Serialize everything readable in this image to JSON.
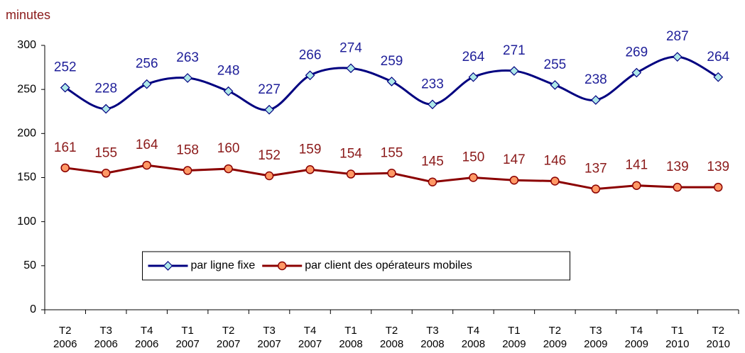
{
  "chart_data": {
    "type": "line",
    "y_label": "minutes",
    "categories": [
      [
        "T2",
        "2006"
      ],
      [
        "T3",
        "2006"
      ],
      [
        "T4",
        "2006"
      ],
      [
        "T1",
        "2007"
      ],
      [
        "T2",
        "2007"
      ],
      [
        "T3",
        "2007"
      ],
      [
        "T4",
        "2007"
      ],
      [
        "T1",
        "2008"
      ],
      [
        "T2",
        "2008"
      ],
      [
        "T3",
        "2008"
      ],
      [
        "T4",
        "2008"
      ],
      [
        "T1",
        "2009"
      ],
      [
        "T2",
        "2009"
      ],
      [
        "T3",
        "2009"
      ],
      [
        "T4",
        "2009"
      ],
      [
        "T1",
        "2010"
      ],
      [
        "T2",
        "2010"
      ]
    ],
    "series": [
      {
        "name": "par ligne fixe",
        "color": "#000080",
        "marker": "diamond",
        "marker_fill": "#aee8e8",
        "smooth": true,
        "label_color": "#1f1f99",
        "values": [
          252,
          228,
          256,
          263,
          248,
          227,
          266,
          274,
          259,
          233,
          264,
          271,
          255,
          238,
          269,
          287,
          264
        ]
      },
      {
        "name": "par client des opérateurs mobiles",
        "color": "#8b0000",
        "marker": "circle",
        "marker_fill": "#ff9966",
        "smooth": false,
        "label_color": "#8b1a1a",
        "values": [
          161,
          155,
          164,
          158,
          160,
          152,
          159,
          154,
          155,
          145,
          150,
          147,
          146,
          137,
          141,
          139,
          139
        ]
      }
    ],
    "ylim": [
      0,
      300
    ],
    "yticks": [
      0,
      50,
      100,
      150,
      200,
      250,
      300
    ],
    "legend": "center"
  }
}
